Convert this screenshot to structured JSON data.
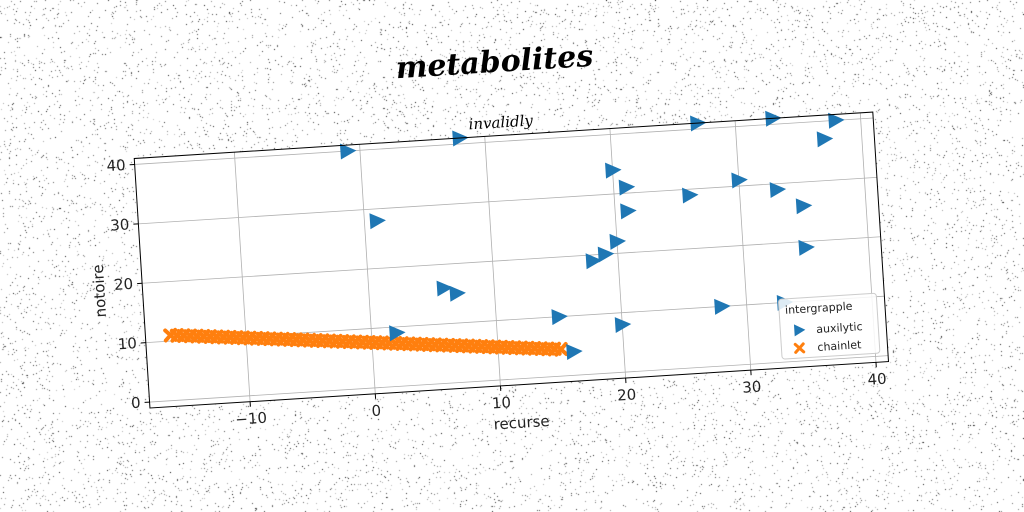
{
  "chart_data": {
    "type": "scatter",
    "suptitle": "metabolites",
    "title": "invalidly",
    "xlabel": "recurse",
    "ylabel": "notoire",
    "xlim": [
      -18,
      41
    ],
    "ylim": [
      -1,
      41
    ],
    "xticks": [
      -10,
      0,
      10,
      20,
      30,
      40
    ],
    "yticks": [
      0,
      10,
      20,
      30,
      40
    ],
    "xtick_labels": [
      "−10",
      "0",
      "10",
      "20",
      "30",
      "40"
    ],
    "ytick_labels": [
      "0",
      "10",
      "20",
      "30",
      "40"
    ],
    "grid": true,
    "legend": {
      "placement": "lower-right",
      "title": "intergrapple"
    },
    "series": [
      {
        "name": "auxilytic",
        "marker": "triangle-right",
        "color": "#1f77b4",
        "points": [
          [
            -1,
            40
          ],
          [
            8,
            41
          ],
          [
            27,
            41
          ],
          [
            33,
            41
          ],
          [
            38,
            40
          ],
          [
            37,
            37
          ],
          [
            1,
            28
          ],
          [
            20,
            34
          ],
          [
            21,
            31
          ],
          [
            30,
            31
          ],
          [
            26,
            29
          ],
          [
            33,
            29
          ],
          [
            21,
            27
          ],
          [
            35,
            26
          ],
          [
            20,
            22
          ],
          [
            19,
            20
          ],
          [
            18,
            19
          ],
          [
            35,
            19
          ],
          [
            6,
            16
          ],
          [
            7,
            15
          ],
          [
            15,
            10
          ],
          [
            2,
            9
          ],
          [
            20,
            8
          ],
          [
            28,
            10
          ],
          [
            33,
            10
          ],
          [
            16,
            4
          ]
        ]
      },
      {
        "name": "chainlet",
        "marker": "x",
        "color": "#ff7f0e",
        "line": {
          "x_start": -16,
          "x_end": 15,
          "y_start": 11,
          "y_end": 4.5,
          "count": 60
        }
      }
    ]
  }
}
